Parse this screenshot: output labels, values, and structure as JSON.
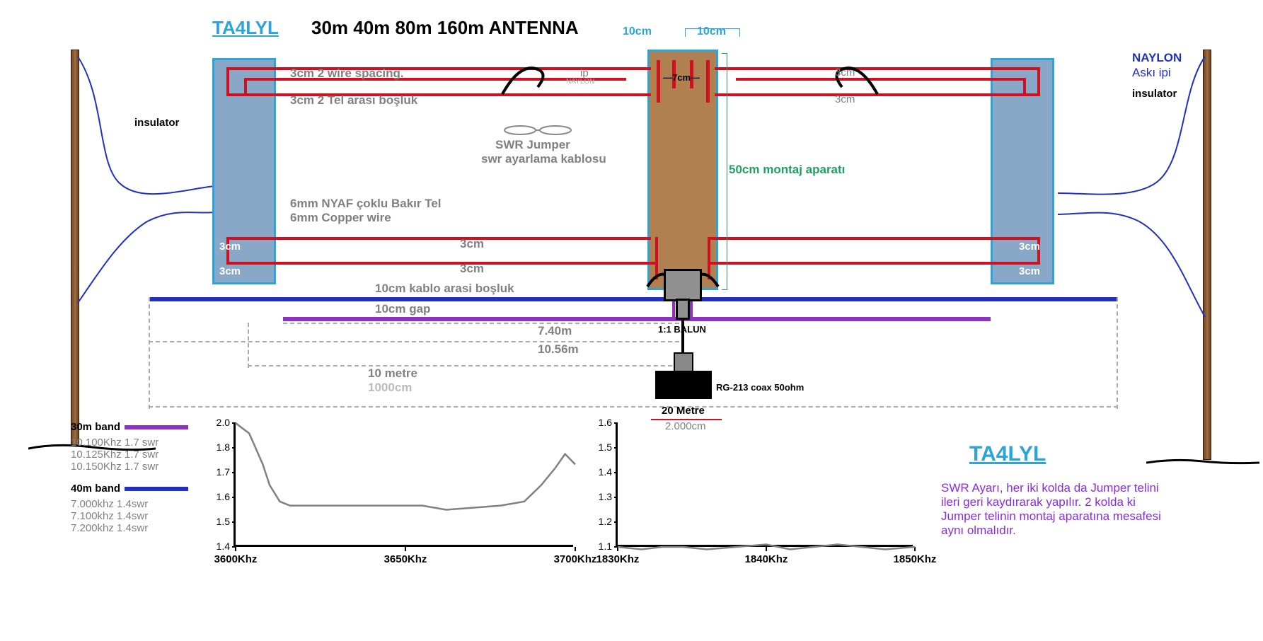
{
  "title": {
    "callsign": "TA4LYL",
    "main": "30m 40m 80m 160m ANTENNA"
  },
  "dims": {
    "top_10cm_a": "10cm",
    "top_10cm_b": "10cm",
    "center_7cm": "—7cm—",
    "top_spacing_en": "3cm  2 wire spacing.",
    "top_spacing_tr": "3cm  2 Tel arası boşluk",
    "ip": "ip",
    "naylon": "NAYLON",
    "swr_jumper_en": "SWR Jumper",
    "swr_jumper_tr": "swr ayarlama kablosu",
    "mount_height": "50cm  montaj aparatı",
    "wire_tr": "6mm NYAF çoklu Bakır Tel",
    "wire_en": "6mm Copper wire",
    "side_3cm": "3cm",
    "mid_3cm_a": "3cm",
    "mid_3cm_b": "3cm",
    "right_3cm": "3cm",
    "gap_tr": "10cm kablo arasi boşluk",
    "gap_en": "10cm gap",
    "len_740": "7.40m",
    "len_1056": "10.56m",
    "len_10m": "10 metre",
    "len_1000cm": "1000cm",
    "len_20m": "20 Metre",
    "len_2000cm": "2.000cm",
    "balun": "1:1 BALUN",
    "coax": "RG-213 coax 50ohm",
    "insulator": "insulator",
    "naylon_rope": "NAYLON",
    "rope_tr": "Askı ipi",
    "insulator_r": "insulator"
  },
  "legend": {
    "b30": {
      "title": "30m band",
      "color": "#9030c0",
      "l1": "10.100Khz 1.7 swr",
      "l2": "10.125Khz 1.7 swr",
      "l3": "10.150Khz 1.7 swr"
    },
    "b40": {
      "title": "40m band",
      "color": "#2030c0",
      "l1": "7.000khz 1.4swr",
      "l2": "7.100khz 1.4swr",
      "l3": "7.200khz 1.4swr"
    }
  },
  "chart80": {
    "x_labels": [
      "3600Khz",
      "3650Khz",
      "3700Khz"
    ],
    "y_labels": [
      "2.0",
      "1.8",
      "1.7",
      "1.6",
      "1.5",
      "1.4"
    ],
    "y_min": 1.4,
    "y_max": 2.0,
    "points": [
      [
        0,
        2.0
      ],
      [
        0.04,
        1.95
      ],
      [
        0.08,
        1.8
      ],
      [
        0.1,
        1.7
      ],
      [
        0.13,
        1.62
      ],
      [
        0.16,
        1.6
      ],
      [
        0.4,
        1.6
      ],
      [
        0.55,
        1.6
      ],
      [
        0.62,
        1.58
      ],
      [
        0.7,
        1.59
      ],
      [
        0.78,
        1.6
      ],
      [
        0.85,
        1.62
      ],
      [
        0.9,
        1.7
      ],
      [
        0.94,
        1.78
      ],
      [
        0.97,
        1.85
      ],
      [
        1.0,
        1.8
      ]
    ]
  },
  "chart160": {
    "x_labels": [
      "1830Khz",
      "1840Khz",
      "1850Khz"
    ],
    "y_labels": [
      "1.6",
      "1.5",
      "1.4",
      "1.3",
      "1.2",
      "1.1"
    ],
    "y_min": 1.1,
    "y_max": 1.6,
    "points": [
      [
        0,
        1.1
      ],
      [
        0.08,
        1.09
      ],
      [
        0.15,
        1.1
      ],
      [
        0.22,
        1.1
      ],
      [
        0.3,
        1.09
      ],
      [
        0.4,
        1.1
      ],
      [
        0.5,
        1.11
      ],
      [
        0.58,
        1.09
      ],
      [
        0.66,
        1.1
      ],
      [
        0.74,
        1.11
      ],
      [
        0.82,
        1.1
      ],
      [
        0.9,
        1.09
      ],
      [
        1.0,
        1.1
      ]
    ]
  },
  "footer": {
    "callsign": "TA4LYL",
    "note_l1": "SWR Ayarı, her iki kolda da Jumper telini",
    "note_l2": "ileri geri kaydırarak yapılır. 2 kolda ki",
    "note_l3": "Jumper telinin montaj aparatına mesafesi",
    "note_l4": "aynı olmalıdır."
  },
  "colors": {
    "red": "#d01020",
    "blue": "#2030c0",
    "purple": "#9030c0",
    "cyan": "#2ba5d8",
    "green": "#20a060",
    "gray": "#808080"
  }
}
